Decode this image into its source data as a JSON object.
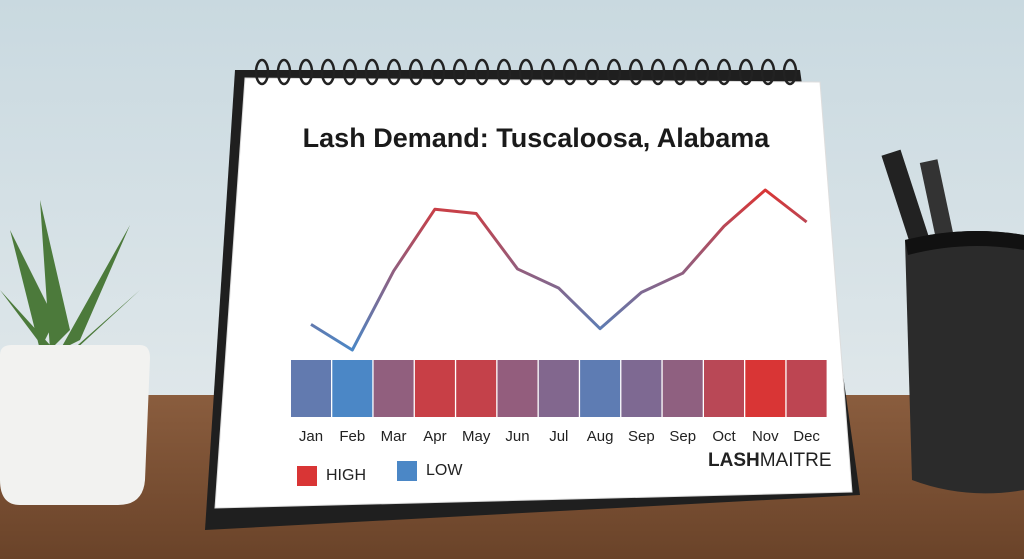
{
  "chart_data": {
    "type": "line",
    "title": "Lash Demand: Tuscaloosa, Alabama",
    "categories": [
      "Jan",
      "Feb",
      "Mar",
      "Apr",
      "May",
      "Jun",
      "Jul",
      "Aug",
      "Sep",
      "Sep",
      "Oct",
      "Nov",
      "Dec"
    ],
    "values": [
      20,
      8,
      45,
      74,
      72,
      46,
      37,
      18,
      35,
      44,
      66,
      83,
      68
    ],
    "legend": [
      {
        "name": "HIGH",
        "color": "#d93535"
      },
      {
        "name": "LOW",
        "color": "#4b87c6"
      }
    ]
  },
  "brand": {
    "bold": "LASH",
    "light": "MAITRE"
  }
}
